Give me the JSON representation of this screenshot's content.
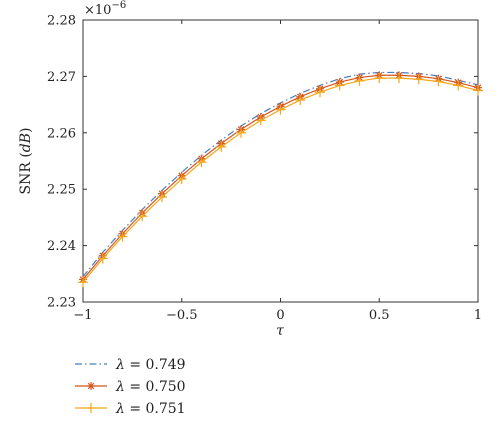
{
  "chart_data": {
    "type": "line",
    "xlabel_symbol": "τ",
    "ylabel_main": "SNR (",
    "ylabel_unit": "dB",
    "ylabel_close": ")",
    "y_exponent_base": "×10",
    "y_exponent_power": "−6",
    "xlim": [
      -1,
      1
    ],
    "ylim": [
      2.23,
      2.28
    ],
    "x_ticks": [
      -1,
      -0.5,
      0,
      0.5,
      1
    ],
    "x_tick_labels": [
      "−1",
      "−0.5",
      "0",
      "0.5",
      "1"
    ],
    "y_ticks": [
      2.23,
      2.24,
      2.25,
      2.26,
      2.27,
      2.28
    ],
    "y_tick_labels": [
      "2.23",
      "2.24",
      "2.25",
      "2.26",
      "2.27",
      "2.28"
    ],
    "grid": false,
    "legend_position": "below plot, left",
    "x": [
      -1.0,
      -0.9,
      -0.8,
      -0.7,
      -0.6,
      -0.5,
      -0.4,
      -0.3,
      -0.2,
      -0.1,
      0.0,
      0.1,
      0.2,
      0.3,
      0.4,
      0.5,
      0.6,
      0.7,
      0.8,
      0.9,
      1.0
    ],
    "series": [
      {
        "name": "λ = 0.749",
        "label_symbol": "λ",
        "label_value": " = 0.749",
        "color": "#4a7fc1",
        "line_style": "dash-dot",
        "marker": "none",
        "values": [
          2.2345,
          2.2388,
          2.2427,
          2.2464,
          2.2498,
          2.253,
          2.256,
          2.2587,
          2.2612,
          2.2634,
          2.2653,
          2.267,
          2.2684,
          2.2696,
          2.2704,
          2.2707,
          2.2707,
          2.2705,
          2.2701,
          2.2693,
          2.2685
        ]
      },
      {
        "name": "λ = 0.750",
        "label_symbol": "λ",
        "label_value": " = 0.750",
        "color": "#d4561e",
        "line_style": "solid",
        "marker": "asterisk",
        "values": [
          2.234,
          2.2382,
          2.2421,
          2.2458,
          2.2492,
          2.2524,
          2.2554,
          2.2581,
          2.2606,
          2.2628,
          2.2647,
          2.2664,
          2.2678,
          2.269,
          2.2698,
          2.2702,
          2.2702,
          2.27,
          2.2696,
          2.2689,
          2.268
        ]
      },
      {
        "name": "λ = 0.751",
        "label_symbol": "λ",
        "label_value": " = 0.751",
        "color": "#f2a71b",
        "line_style": "solid",
        "marker": "plus",
        "values": [
          2.2335,
          2.2377,
          2.2416,
          2.2452,
          2.2486,
          2.2518,
          2.2548,
          2.2575,
          2.26,
          2.2622,
          2.2641,
          2.2658,
          2.2672,
          2.2684,
          2.2692,
          2.2697,
          2.2697,
          2.2695,
          2.2691,
          2.2684,
          2.2675
        ]
      }
    ]
  }
}
